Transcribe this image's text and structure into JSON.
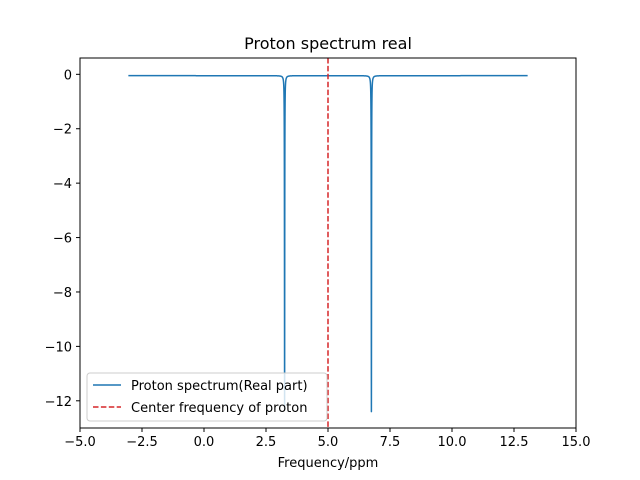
{
  "chart_data": {
    "type": "line",
    "title": "Proton spectrum real",
    "xlabel": "Frequency/ppm",
    "ylabel": "",
    "xlim": [
      -5.0,
      15.0
    ],
    "ylim": [
      -13.0,
      0.6
    ],
    "x_ticks": [
      -5.0,
      -2.5,
      0.0,
      2.5,
      5.0,
      7.5,
      10.0,
      12.5,
      15.0
    ],
    "x_tick_labels": [
      "−5.0",
      "−2.5",
      "0.0",
      "2.5",
      "5.0",
      "7.5",
      "10.0",
      "12.5",
      "15.0"
    ],
    "y_ticks": [
      0,
      -2,
      -4,
      -6,
      -8,
      -10,
      -12
    ],
    "y_tick_labels": [
      "0",
      "−2",
      "−4",
      "−6",
      "−8",
      "−10",
      "−12"
    ],
    "grid": false,
    "legend_position": "lower-left",
    "series": [
      {
        "name": "Proton spectrum(Real part)",
        "color": "#1f77b4",
        "style": "solid",
        "x_range": [
          -3.05,
          13.05
        ],
        "baseline": -0.05,
        "peaks": [
          {
            "center": 3.25,
            "depth": -12.3,
            "width": 0.006
          },
          {
            "center": 6.75,
            "depth": -12.4,
            "width": 0.006
          }
        ]
      },
      {
        "name": "Center frequency of proton",
        "color": "#d62728",
        "style": "dashed",
        "vertical_x": 5.0
      }
    ]
  }
}
